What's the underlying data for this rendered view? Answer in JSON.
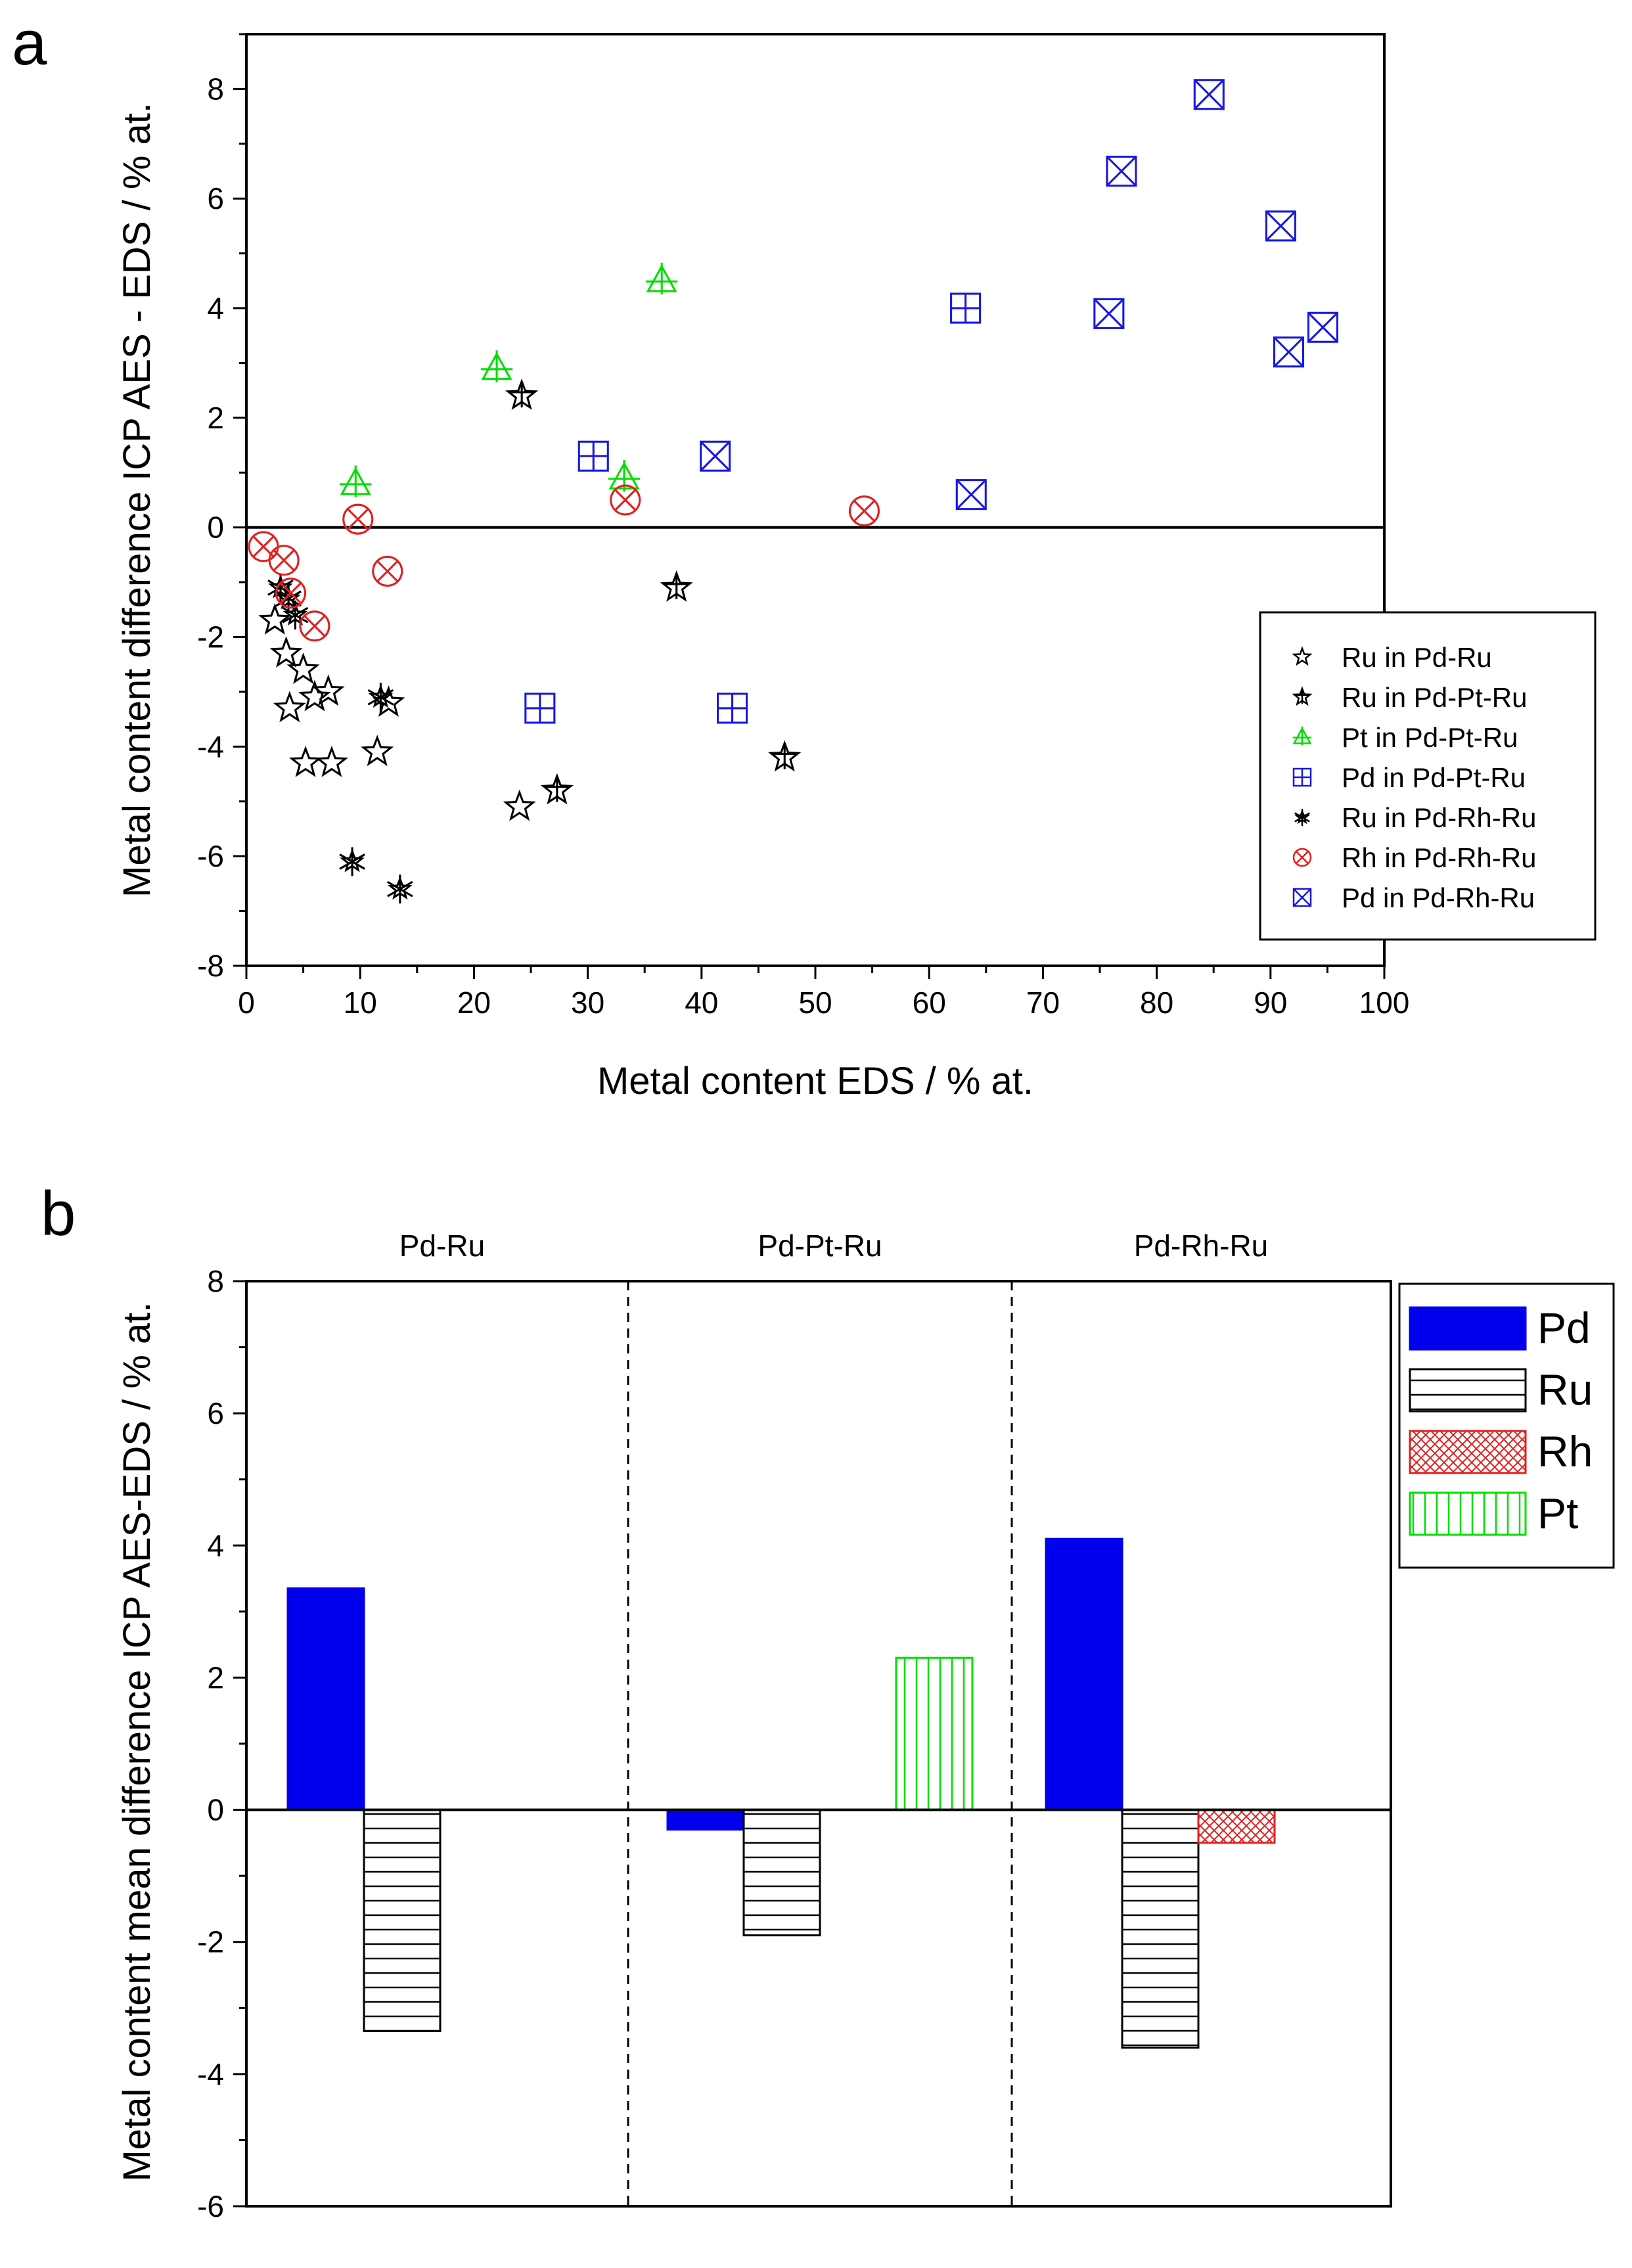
{
  "panels": {
    "a": {
      "letter": "a"
    },
    "b": {
      "letter": "b"
    }
  },
  "colors": {
    "black": "#000000",
    "green": "#00dd00",
    "blue": "#1818e0",
    "red": "#e02020",
    "pd_fill": "#0000ee"
  },
  "chart_data": [
    {
      "type": "scatter",
      "panel": "a",
      "xlabel": "Metal content EDS / % at.",
      "ylabel": "Metal content difference ICP AES - EDS / % at.",
      "xlim": [
        0,
        100
      ],
      "ylim": [
        -8,
        9
      ],
      "xticks": [
        0,
        10,
        20,
        30,
        40,
        50,
        60,
        70,
        80,
        90,
        100
      ],
      "yticks": [
        -8,
        -6,
        -4,
        -2,
        0,
        2,
        4,
        6,
        8
      ],
      "zero_line": true,
      "legend_position": "right",
      "series": [
        {
          "name": "Ru in Pd-Ru",
          "marker": "star-open",
          "color": "#000000",
          "points": [
            [
              2.5,
              -1.7
            ],
            [
              3.5,
              -2.3
            ],
            [
              3.8,
              -3.3
            ],
            [
              5,
              -2.6
            ],
            [
              5.2,
              -4.3
            ],
            [
              6,
              -3.1
            ],
            [
              7.2,
              -3.0
            ],
            [
              7.5,
              -4.3
            ],
            [
              11.5,
              -4.1
            ],
            [
              12.5,
              -3.2
            ],
            [
              24,
              -5.1
            ]
          ]
        },
        {
          "name": "Ru in Pd-Pt-Ru",
          "marker": "star-cross",
          "color": "#000000",
          "points": [
            [
              24.2,
              2.4
            ],
            [
              37.8,
              -1.1
            ],
            [
              27.3,
              -4.8
            ],
            [
              47.3,
              -4.2
            ]
          ]
        },
        {
          "name": "Pt in Pd-Pt-Ru",
          "marker": "triangle-plus",
          "color": "#00dd00",
          "points": [
            [
              9.6,
              0.8
            ],
            [
              22,
              2.9
            ],
            [
              36.5,
              4.5
            ],
            [
              33.2,
              0.9
            ]
          ]
        },
        {
          "name": "Pd in Pd-Pt-Ru",
          "marker": "square-plus",
          "color": "#1818e0",
          "points": [
            [
              30.5,
              1.3
            ],
            [
              25.8,
              -3.3
            ],
            [
              42.7,
              -3.3
            ],
            [
              63.2,
              4.0
            ]
          ]
        },
        {
          "name": "Ru in Pd-Rh-Ru",
          "marker": "asterisk",
          "color": "#000000",
          "points": [
            [
              3,
              -1.1
            ],
            [
              3.7,
              -1.3
            ],
            [
              4.3,
              -1.6
            ],
            [
              9.3,
              -6.1
            ],
            [
              11.8,
              -3.1
            ],
            [
              13.5,
              -6.6
            ]
          ]
        },
        {
          "name": "Rh in Pd-Rh-Ru",
          "marker": "circle-x",
          "color": "#e02020",
          "points": [
            [
              1.5,
              -0.35
            ],
            [
              3.3,
              -0.6
            ],
            [
              3.9,
              -1.2
            ],
            [
              6,
              -1.8
            ],
            [
              9.8,
              0.15
            ],
            [
              12.4,
              -0.8
            ],
            [
              33.3,
              0.5
            ],
            [
              54.3,
              0.3
            ]
          ]
        },
        {
          "name": "Pd in Pd-Rh-Ru",
          "marker": "square-x",
          "color": "#1818e0",
          "points": [
            [
              41.2,
              1.3
            ],
            [
              63.7,
              0.6
            ],
            [
              75.8,
              3.9
            ],
            [
              76.9,
              6.5
            ],
            [
              84.6,
              7.9
            ],
            [
              90.9,
              5.5
            ],
            [
              91.6,
              3.2
            ],
            [
              94.6,
              3.65
            ]
          ]
        }
      ]
    },
    {
      "type": "bar",
      "panel": "b",
      "xlabel": "",
      "ylabel": "Metal content mean difference ICP AES-EDS / % at.",
      "ylim": [
        -6,
        8
      ],
      "yticks": [
        -6,
        -4,
        -2,
        0,
        2,
        4,
        6,
        8
      ],
      "categories": [
        "Pd-Ru",
        "Pd-Pt-Ru",
        "Pd-Rh-Ru"
      ],
      "series": [
        {
          "name": "Pd",
          "values": [
            3.35,
            -0.3,
            4.1
          ]
        },
        {
          "name": "Ru",
          "values": [
            -3.35,
            -1.9,
            -3.6
          ]
        },
        {
          "name": "Rh",
          "values": [
            null,
            null,
            -0.5
          ]
        },
        {
          "name": "Pt",
          "values": [
            null,
            2.3,
            null
          ]
        }
      ],
      "legend_position": "top-right"
    }
  ]
}
